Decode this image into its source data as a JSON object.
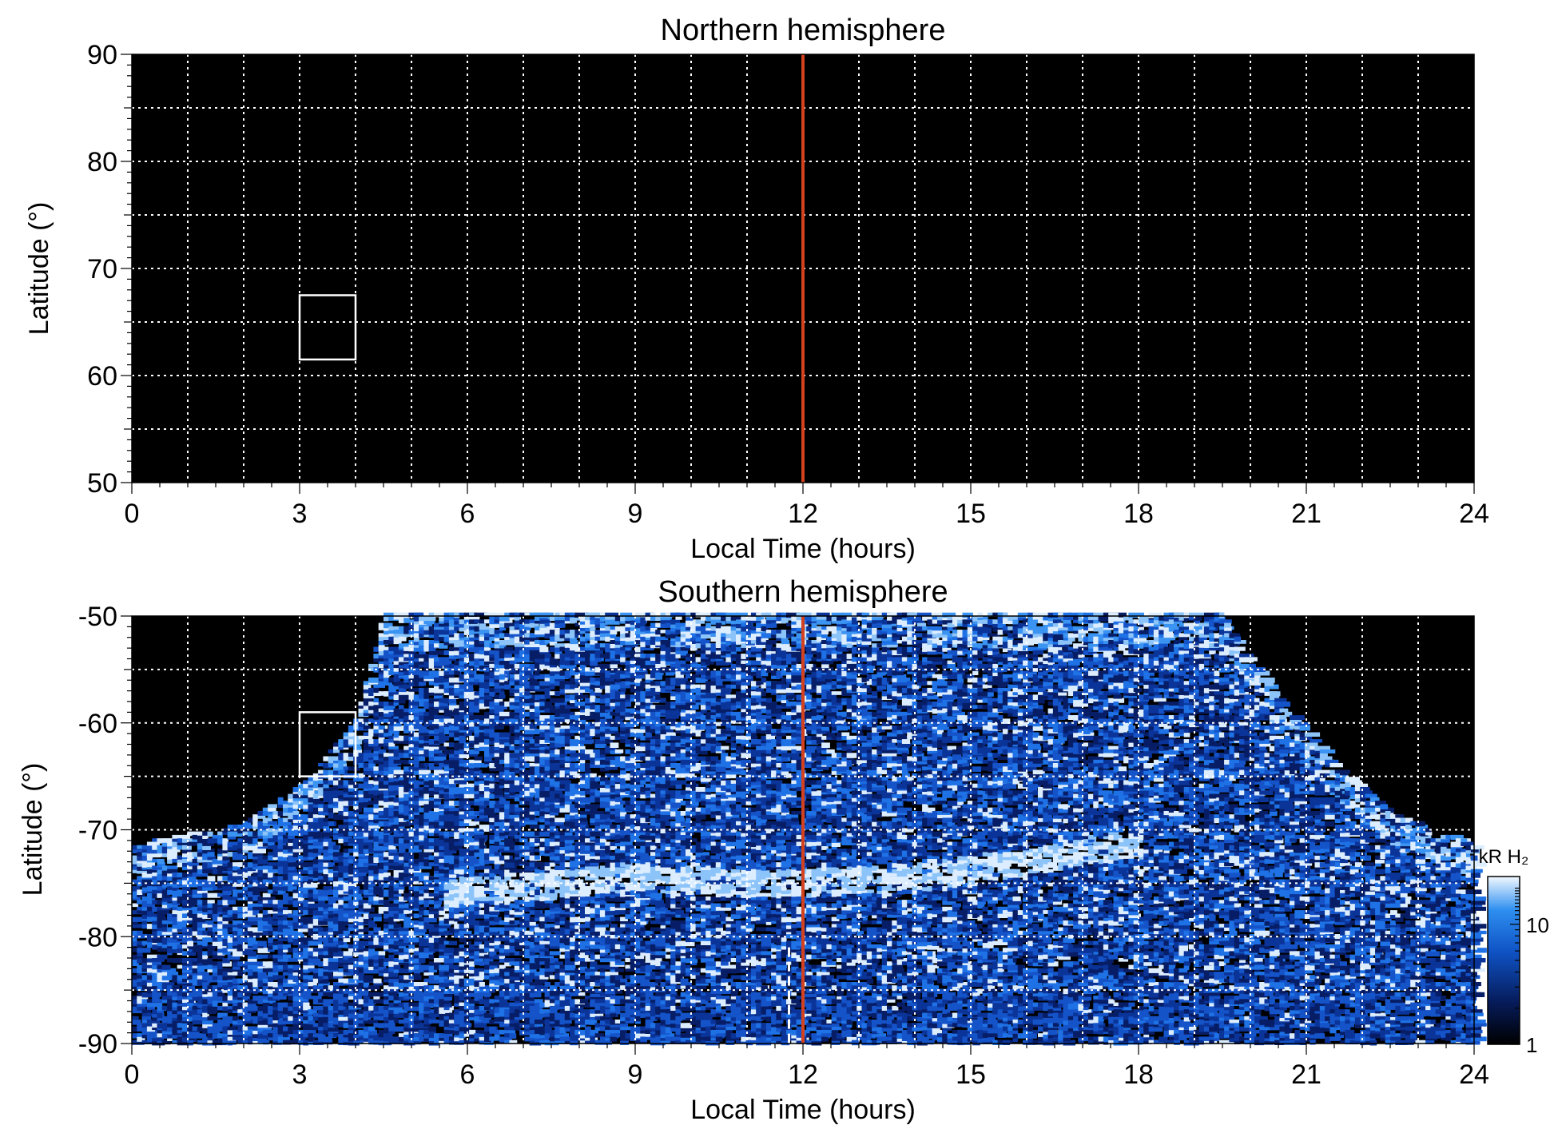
{
  "colors": {
    "background": "#000000",
    "grid": "#ffffff",
    "noon_line": "#d4411e",
    "box": "#ffffff",
    "auroral_low": "#0a2a8c",
    "auroral_mid": "#1e7be8",
    "auroral_high": "#e6f2ff"
  },
  "chart_data": [
    {
      "type": "heatmap",
      "title": "Northern hemisphere",
      "xlabel": "Local Time (hours)",
      "ylabel": "Latitude (°)",
      "xlim": [
        0,
        24
      ],
      "ylim": [
        50,
        90
      ],
      "xticks": [
        0,
        3,
        6,
        9,
        12,
        15,
        18,
        21,
        24
      ],
      "yticks": [
        50,
        60,
        70,
        80,
        90
      ],
      "grid": true,
      "noon_line_x": 12,
      "box": {
        "x": [
          3,
          4
        ],
        "y": [
          61.5,
          67.5
        ]
      },
      "emission": "none"
    },
    {
      "type": "heatmap",
      "title": "Southern hemisphere",
      "xlabel": "Local Time (hours)",
      "ylabel": "Latitude (°)",
      "xlim": [
        0,
        24
      ],
      "ylim": [
        -90,
        -50
      ],
      "xticks": [
        0,
        3,
        6,
        9,
        12,
        15,
        18,
        21,
        24
      ],
      "yticks": [
        -90,
        -80,
        -70,
        -60,
        -50
      ],
      "grid": true,
      "noon_line_x": 12,
      "dashed_line_x": 11.75,
      "box": {
        "x": [
          3,
          4
        ],
        "y": [
          -65,
          -59
        ]
      },
      "coverage_edge": [
        [
          0,
          -71.5
        ],
        [
          2,
          -69.5
        ],
        [
          3,
          -66
        ],
        [
          4,
          -60
        ],
        [
          4.5,
          -50
        ],
        [
          19.5,
          -50
        ],
        [
          20.5,
          -58
        ],
        [
          21.5,
          -64
        ],
        [
          22.5,
          -68.5
        ],
        [
          24,
          -71.5
        ]
      ],
      "main_oval": [
        [
          5.5,
          -76
        ],
        [
          7,
          -75.5
        ],
        [
          9,
          -74.5
        ],
        [
          10.5,
          -75
        ],
        [
          12,
          -75
        ],
        [
          14,
          -74.5
        ],
        [
          15.5,
          -73.5
        ],
        [
          17,
          -72
        ],
        [
          18,
          -71.5
        ]
      ],
      "colorbar": {
        "label": "kR H₂",
        "scale": "log",
        "range": [
          1,
          25
        ],
        "ticks": [
          1,
          10
        ]
      }
    }
  ]
}
